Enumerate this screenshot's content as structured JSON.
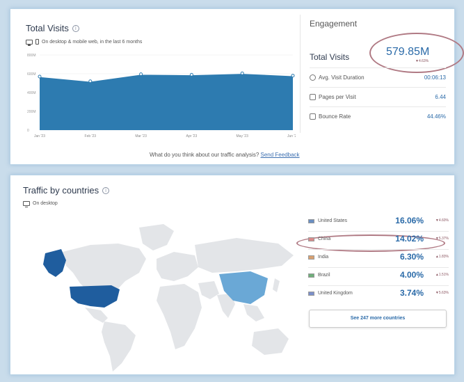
{
  "visits_panel": {
    "title": "Total Visits",
    "subnote": "On desktop & mobile web, in the last 6 months",
    "feedback_prompt": "What do you think about our traffic analysis?",
    "feedback_link": "Send Feedback"
  },
  "chart_data": {
    "type": "area",
    "x": [
      "Jan '23",
      "Feb '23",
      "Mar '23",
      "Apr '23",
      "May '23",
      "Jun '23"
    ],
    "y_ticks": [
      "800M",
      "600M",
      "400M",
      "200M",
      "0"
    ],
    "series": [
      {
        "values": [
          570,
          520,
          595,
          590,
          605,
          580
        ]
      }
    ],
    "ylim": [
      0,
      800
    ],
    "color": "#2d7bb0",
    "grid": true
  },
  "engagement": {
    "title": "Engagement",
    "total_visits_label": "Total Visits",
    "total_visits_value": "579.85M",
    "total_visits_change": "4.63%",
    "metrics": [
      {
        "label": "Avg. Visit Duration",
        "value": "00:06:13",
        "icon": "clock-icon"
      },
      {
        "label": "Pages per Visit",
        "value": "6.44",
        "icon": "pages-icon"
      },
      {
        "label": "Bounce Rate",
        "value": "44.46%",
        "icon": "bounce-icon"
      }
    ]
  },
  "countries_panel": {
    "title": "Traffic by countries",
    "subnote": "On desktop",
    "countries": [
      {
        "name": "United States",
        "share": "16.06%",
        "change": "4.60%",
        "direction": "down",
        "flag_color": "#6a8fc2"
      },
      {
        "name": "China",
        "share": "14.02%",
        "change": "5.37%",
        "direction": "down",
        "flag_color": "#d98a8a"
      },
      {
        "name": "India",
        "share": "6.30%",
        "change": "1.83%",
        "direction": "up",
        "flag_color": "#d8a070"
      },
      {
        "name": "Brazil",
        "share": "4.00%",
        "change": "1.51%",
        "direction": "up",
        "flag_color": "#6fae7a"
      },
      {
        "name": "United Kingdom",
        "share": "3.74%",
        "change": "5.63%",
        "direction": "down",
        "flag_color": "#7b8fc9"
      }
    ],
    "see_more": "See 247 more countries"
  },
  "map_colors": {
    "land": "#e3e5e8",
    "usa": "#1f5d9e",
    "alaska": "#1f5d9e",
    "china": "#6aa8d6"
  }
}
